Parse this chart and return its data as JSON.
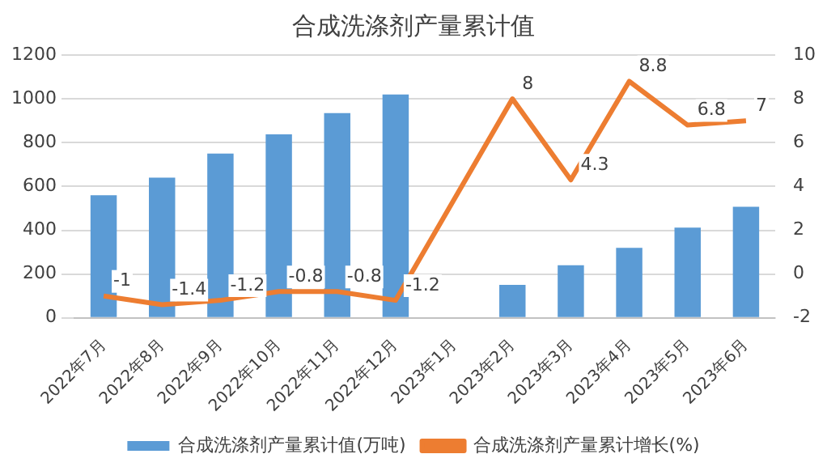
{
  "chart_data": {
    "type": "bar",
    "title": "合成洗涤剂产量累计值",
    "categories": [
      "2022年7月",
      "2022年8月",
      "2022年9月",
      "2022年10月",
      "2022年11月",
      "2022年12月",
      "2023年1月",
      "2023年2月",
      "2023年3月",
      "2023年4月",
      "2023年5月",
      "2023年6月"
    ],
    "series": [
      {
        "name": "合成洗涤剂产量累计值(万吨)",
        "color": "#5b9bd5",
        "values": [
          560,
          640,
          750,
          838,
          935,
          1020,
          null,
          151,
          240,
          320,
          412,
          507
        ]
      },
      {
        "name": "合成洗涤剂产量累计增长(%)",
        "type": "line",
        "axis": "y2",
        "color": "#ed7d31",
        "values": [
          -1,
          -1.4,
          -1.2,
          -0.8,
          -0.8,
          -1.2,
          null,
          8,
          4.3,
          8.8,
          6.8,
          7
        ],
        "value_labels": [
          "-1",
          "-1.4",
          "-1.2",
          "-0.8",
          "-0.8",
          "-1.2",
          null,
          "8",
          "4.3",
          "8.8",
          "6.8",
          "7"
        ]
      }
    ],
    "ylim": [
      0,
      1200
    ],
    "yticks": [
      0,
      200,
      400,
      600,
      800,
      1000,
      1200
    ],
    "y2lim": [
      -2,
      10
    ],
    "y2ticks": [
      -2,
      0,
      2,
      4,
      6,
      8,
      10
    ],
    "grid": "y",
    "legend": "bottom",
    "marker": "none"
  }
}
